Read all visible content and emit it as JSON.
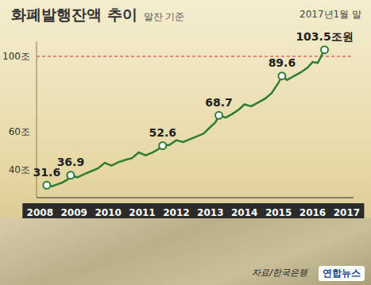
{
  "chart_data": {
    "type": "line",
    "title": "화폐발행잔액 추이",
    "subtitle": "말잔 기준",
    "note": "2017년1월 말",
    "source": "자료/한국은행",
    "credit": "연합뉴스",
    "color": "#2e7d32",
    "x": [
      2008.2,
      2008.35,
      2008.5,
      2008.65,
      2008.8,
      2008.9,
      2009.1,
      2009.3,
      2009.5,
      2009.7,
      2009.9,
      2010.1,
      2010.3,
      2010.5,
      2010.7,
      2010.9,
      2011.1,
      2011.3,
      2011.45,
      2011.6,
      2011.8,
      2012.0,
      2012.2,
      2012.4,
      2012.6,
      2012.8,
      2013.0,
      2013.15,
      2013.25,
      2013.45,
      2013.65,
      2013.85,
      2014.0,
      2014.2,
      2014.4,
      2014.6,
      2014.8,
      2015.0,
      2015.1,
      2015.25,
      2015.45,
      2015.65,
      2015.85,
      2016.0,
      2016.15,
      2016.35
    ],
    "values": [
      31.6,
      31.0,
      32.0,
      33.0,
      34.5,
      36.9,
      35.8,
      37.5,
      39.0,
      40.5,
      43.5,
      42.0,
      43.8,
      45.0,
      46.0,
      49.0,
      47.5,
      49.0,
      50.5,
      52.6,
      53.0,
      55.5,
      54.5,
      56.0,
      57.5,
      59.0,
      62.5,
      65.0,
      68.7,
      67.5,
      69.5,
      72.0,
      74.5,
      73.5,
      75.5,
      77.5,
      80.5,
      86.0,
      89.6,
      87.5,
      89.5,
      91.5,
      94.0,
      97.0,
      96.5,
      103.5
    ],
    "xlim": [
      2007.9,
      2017.2
    ],
    "xticks": [
      2008,
      2009,
      2010,
      2011,
      2012,
      2013,
      2014,
      2015,
      2016,
      2017
    ],
    "ylim": [
      25,
      108
    ],
    "yticks": [
      {
        "value": 40,
        "label": "40조"
      },
      {
        "value": 60,
        "label": "60조"
      },
      {
        "value": 100,
        "label": "100조"
      }
    ],
    "grid": false,
    "reference_lines": [
      {
        "value": 100,
        "color": "#d32f2f"
      }
    ],
    "point_labels": [
      {
        "x": 2008.2,
        "value": 31.6,
        "label": "31.6"
      },
      {
        "x": 2008.9,
        "value": 36.9,
        "label": "36.9"
      },
      {
        "x": 2011.6,
        "value": 52.6,
        "label": "52.6"
      },
      {
        "x": 2013.25,
        "value": 68.7,
        "label": "68.7"
      },
      {
        "x": 2015.1,
        "value": 89.6,
        "label": "89.6"
      },
      {
        "x": 2016.35,
        "value": 103.5,
        "label": "103.5조원"
      }
    ]
  }
}
